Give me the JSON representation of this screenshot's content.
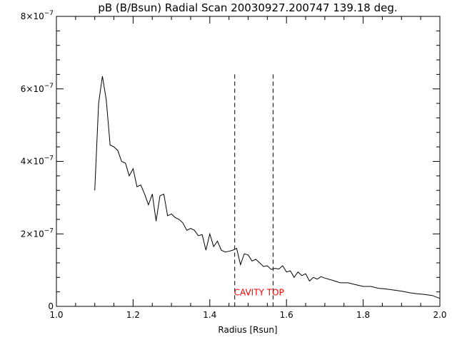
{
  "chart_data": {
    "type": "line",
    "title": "pB (B/Bsun) Radial Scan 20030927.200747 139.18 deg.",
    "xlabel": "Radius [Rsun]",
    "ylabel": "",
    "xlim": [
      1.0,
      2.0
    ],
    "ylim": [
      0,
      8e-07
    ],
    "x_ticks": [
      1.0,
      1.2,
      1.4,
      1.6,
      1.8,
      2.0
    ],
    "x_tick_labels": [
      "1.0",
      "1.2",
      "1.4",
      "1.6",
      "1.8",
      "2.0"
    ],
    "y_ticks": [
      0,
      2e-07,
      4e-07,
      6e-07,
      8e-07
    ],
    "y_tick_labels": [
      {
        "base": "0",
        "exp": ""
      },
      {
        "base": "2×10",
        "exp": "−7"
      },
      {
        "base": "4×10",
        "exp": "−7"
      },
      {
        "base": "6×10",
        "exp": "−7"
      },
      {
        "base": "8×10",
        "exp": "−7"
      }
    ],
    "grid": false,
    "line_color": "#000000",
    "x": [
      1.1,
      1.11,
      1.12,
      1.13,
      1.14,
      1.15,
      1.16,
      1.17,
      1.18,
      1.19,
      1.2,
      1.21,
      1.22,
      1.23,
      1.24,
      1.25,
      1.26,
      1.27,
      1.28,
      1.29,
      1.3,
      1.31,
      1.32,
      1.33,
      1.34,
      1.35,
      1.36,
      1.37,
      1.38,
      1.39,
      1.4,
      1.41,
      1.42,
      1.43,
      1.44,
      1.45,
      1.46,
      1.47,
      1.48,
      1.49,
      1.5,
      1.51,
      1.52,
      1.53,
      1.54,
      1.55,
      1.56,
      1.57,
      1.58,
      1.59,
      1.6,
      1.61,
      1.62,
      1.63,
      1.64,
      1.65,
      1.66,
      1.67,
      1.68,
      1.69,
      1.7,
      1.72,
      1.74,
      1.76,
      1.78,
      1.8,
      1.82,
      1.84,
      1.86,
      1.88,
      1.9,
      1.92,
      1.94,
      1.96,
      1.98,
      2.0
    ],
    "y": [
      3.2e-07,
      5.6e-07,
      6.35e-07,
      5.7e-07,
      4.45e-07,
      4.4e-07,
      4.3e-07,
      4e-07,
      3.95e-07,
      3.6e-07,
      3.8e-07,
      3.3e-07,
      3.35e-07,
      3.1e-07,
      2.8e-07,
      3.1e-07,
      2.35e-07,
      3.05e-07,
      3.1e-07,
      2.5e-07,
      2.55e-07,
      2.45e-07,
      2.4e-07,
      2.3e-07,
      2.1e-07,
      2.15e-07,
      2.1e-07,
      1.95e-07,
      1.98e-07,
      1.55e-07,
      2e-07,
      1.65e-07,
      1.8e-07,
      1.55e-07,
      1.5e-07,
      1.52e-07,
      1.55e-07,
      1.6e-07,
      1.15e-07,
      1.45e-07,
      1.42e-07,
      1.25e-07,
      1.3e-07,
      1.2e-07,
      1.1e-07,
      1.12e-07,
      1.02e-07,
      1.05e-07,
      1.03e-07,
      1.12e-07,
      9.5e-08,
      9.8e-08,
      8e-08,
      9.5e-08,
      8.5e-08,
      9e-08,
      7e-08,
      8e-08,
      7.5e-08,
      8.2e-08,
      7.8e-08,
      7.2e-08,
      6.5e-08,
      6.5e-08,
      6e-08,
      5.5e-08,
      5.5e-08,
      5e-08,
      4.8e-08,
      4.5e-08,
      4.2e-08,
      3.8e-08,
      3.5e-08,
      3.3e-08,
      3e-08,
      2.2e-08
    ],
    "vlines": [
      {
        "x": 1.465,
        "y_top": 6.4e-07,
        "style": "dashed"
      },
      {
        "x": 1.565,
        "y_top": 6.4e-07,
        "style": "dashed"
      }
    ],
    "annotations": [
      {
        "text": "CAVITY TOP",
        "x": 1.463,
        "y": 3e-08,
        "color": "#ff0000"
      }
    ]
  }
}
